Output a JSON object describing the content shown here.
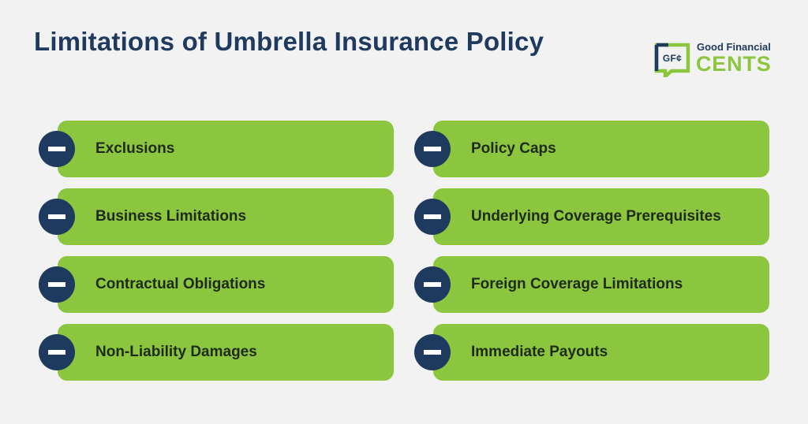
{
  "title": "Limitations of Umbrella Insurance Policy",
  "logo": {
    "mark": "GF¢",
    "line1": "Good Financial",
    "line2": "CENTS"
  },
  "colors": {
    "accent": "#8cc63f",
    "dark": "#1f3a5f",
    "background": "#f2f2f2"
  },
  "items": [
    {
      "label": "Exclusions",
      "icon": "minus-icon"
    },
    {
      "label": "Policy Caps",
      "icon": "minus-icon"
    },
    {
      "label": "Business Limitations",
      "icon": "minus-icon"
    },
    {
      "label": "Underlying Coverage Prerequisites",
      "icon": "minus-icon"
    },
    {
      "label": "Contractual Obligations",
      "icon": "minus-icon"
    },
    {
      "label": "Foreign Coverage Limitations",
      "icon": "minus-icon"
    },
    {
      "label": "Non-Liability Damages",
      "icon": "minus-icon"
    },
    {
      "label": "Immediate Payouts",
      "icon": "minus-icon"
    }
  ]
}
